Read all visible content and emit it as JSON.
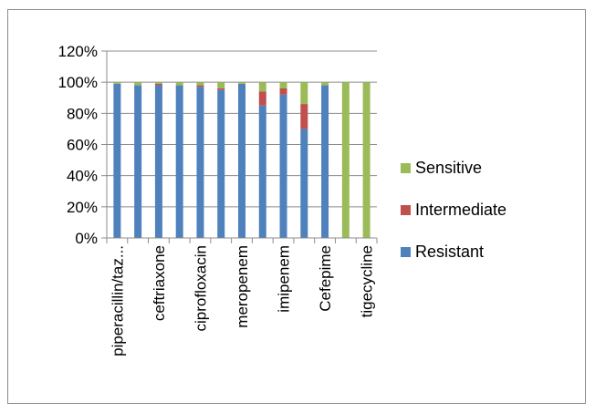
{
  "chart_data": {
    "type": "bar",
    "stacked": true,
    "categories": [
      "piperacillin/taz...",
      "",
      "ceftriaxone",
      "",
      "ciprofloxacin",
      "",
      "meropenem",
      "",
      "imipenem",
      "",
      "Cefepime",
      "",
      "tigecycline"
    ],
    "series": [
      {
        "name": "Resistant",
        "color": "#4f81bd",
        "values": [
          99,
          98,
          98,
          98,
          97,
          95,
          99,
          85,
          92,
          70,
          98,
          0,
          0
        ]
      },
      {
        "name": "Intermediate",
        "color": "#c0504d",
        "values": [
          0,
          0,
          1,
          0,
          1,
          1,
          0,
          9,
          4,
          16,
          0,
          0,
          0
        ]
      },
      {
        "name": "Sensitive",
        "color": "#9bbb59",
        "values": [
          1,
          2,
          1,
          2,
          2,
          4,
          1,
          6,
          4,
          14,
          2,
          100,
          100
        ]
      }
    ],
    "yticks": [
      "0%",
      "20%",
      "40%",
      "60%",
      "80%",
      "100%",
      "120%"
    ],
    "ylim": [
      0,
      120
    ],
    "legend_position": "right",
    "legend_order": [
      "Sensitive",
      "Intermediate",
      "Resistant"
    ],
    "grid": true
  }
}
